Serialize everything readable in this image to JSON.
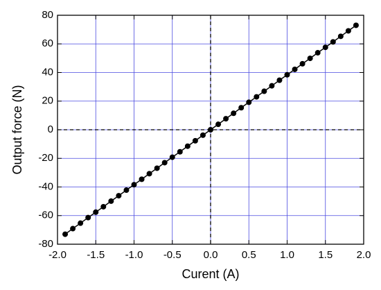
{
  "chart_data": {
    "type": "line",
    "xlabel": "Curent (A)",
    "ylabel": "Output force (N)",
    "x": [
      -1.9,
      -1.8,
      -1.7,
      -1.6,
      -1.5,
      -1.4,
      -1.3,
      -1.2,
      -1.1,
      -1.0,
      -0.9,
      -0.8,
      -0.7,
      -0.6,
      -0.5,
      -0.4,
      -0.3,
      -0.2,
      -0.1,
      0,
      0.1,
      0.2,
      0.3,
      0.4,
      0.5,
      0.6,
      0.7,
      0.8,
      0.9,
      1.0,
      1.1,
      1.2,
      1.3,
      1.4,
      1.5,
      1.6,
      1.7,
      1.8,
      1.9
    ],
    "values": [
      -73.0,
      -69.1,
      -65.3,
      -61.4,
      -57.6,
      -53.8,
      -49.9,
      -46.1,
      -42.2,
      -38.4,
      -34.6,
      -30.7,
      -26.9,
      -23.0,
      -19.2,
      -15.4,
      -11.5,
      -7.7,
      -3.8,
      0,
      3.8,
      7.7,
      11.5,
      15.4,
      19.2,
      23.0,
      26.9,
      30.7,
      34.6,
      38.4,
      42.2,
      46.1,
      49.9,
      53.8,
      57.6,
      61.4,
      65.3,
      69.1,
      73.0
    ],
    "color": "#000000",
    "grid_color": "#4a4ae0",
    "xlim": [
      -2,
      2
    ],
    "xticks": [
      {
        "value": -2,
        "label": "-2.0"
      },
      -1.5,
      {
        "value": -1,
        "label": "-1.0"
      },
      -0.5,
      {
        "value": 0,
        "label": "0.0"
      },
      0.5,
      {
        "value": 1,
        "label": "1.0"
      },
      1.5,
      {
        "value": 2,
        "label": "2.0"
      }
    ],
    "ylim": [
      -80,
      80
    ],
    "yticks": [
      -80,
      -60,
      -40,
      -20,
      0,
      20,
      40,
      60,
      80
    ],
    "grid": true,
    "zero_lines": true
  }
}
